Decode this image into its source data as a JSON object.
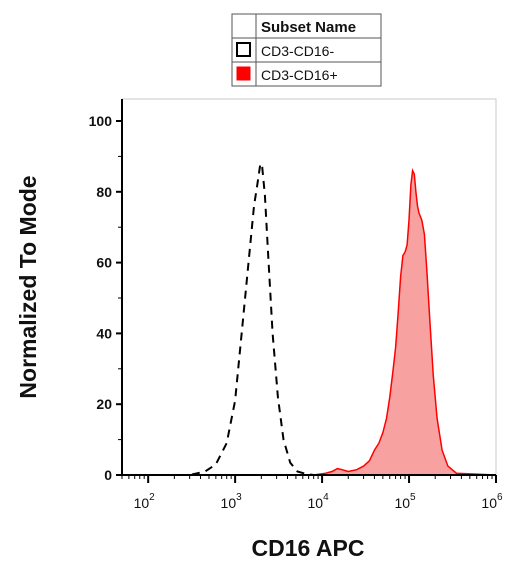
{
  "chart_data": {
    "type": "area",
    "xlabel": "CD16 APC",
    "ylabel": "Normalized To Mode",
    "x_scale": "log",
    "xlim": [
      50,
      1000000
    ],
    "ylim": [
      0,
      100
    ],
    "x_ticks": [
      {
        "base": "10",
        "exp": "2",
        "value": 100
      },
      {
        "base": "10",
        "exp": "3",
        "value": 1000
      },
      {
        "base": "10",
        "exp": "4",
        "value": 10000
      },
      {
        "base": "10",
        "exp": "5",
        "value": 100000
      },
      {
        "base": "10",
        "exp": "6",
        "value": 1000000
      }
    ],
    "y_ticks": [
      "0",
      "20",
      "40",
      "60",
      "80",
      "100"
    ],
    "legend": {
      "title": "Subset Name",
      "placement": "top-center"
    },
    "series": [
      {
        "name": "CD3-CD16-",
        "style": "dashed-outline",
        "color": "#000000",
        "x": [
          50,
          300,
          450,
          600,
          800,
          1000,
          1200,
          1450,
          1650,
          1800,
          1950,
          2050,
          2200,
          2400,
          2700,
          3100,
          3600,
          4300,
          5200,
          6500,
          8000,
          10000,
          30000,
          100000,
          300000,
          1000000
        ],
        "y": [
          0,
          0,
          1,
          3,
          9,
          21,
          41,
          62,
          76,
          82,
          88,
          87,
          79,
          62,
          40,
          22,
          10,
          3.5,
          1,
          0.3,
          0,
          0,
          0,
          0,
          0,
          0
        ]
      },
      {
        "name": "CD3-CD16+",
        "style": "filled",
        "color": "#ff0000",
        "fill": "#f7a1a1",
        "x": [
          50,
          8000,
          11000,
          13000,
          15000,
          17000,
          20000,
          25000,
          30000,
          35000,
          40000,
          45000,
          50000,
          55000,
          60000,
          65000,
          70000,
          75000,
          80000,
          85000,
          90000,
          95000,
          100000,
          105000,
          110000,
          115000,
          120000,
          125000,
          130000,
          135000,
          140000,
          150000,
          160000,
          175000,
          190000,
          210000,
          240000,
          280000,
          350000,
          1000000
        ],
        "y": [
          0,
          0,
          0.5,
          1,
          1.8,
          1.5,
          1,
          1.5,
          2.5,
          4,
          7,
          9,
          12,
          16,
          22,
          29,
          36,
          46,
          56,
          62,
          63,
          65,
          72,
          82,
          86,
          85,
          80,
          76,
          74,
          73,
          72,
          68,
          58,
          42,
          28,
          16,
          7,
          2.5,
          0.5,
          0
        ]
      }
    ]
  }
}
